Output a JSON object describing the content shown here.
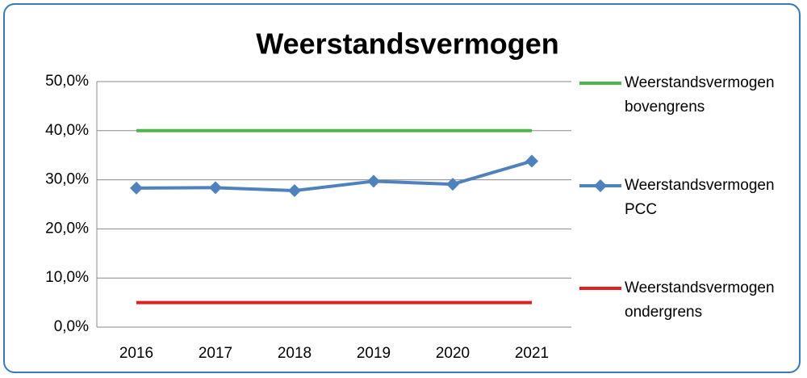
{
  "chart_data": {
    "type": "line",
    "title": "Weerstandsvermogen",
    "categories": [
      "2016",
      "2017",
      "2018",
      "2019",
      "2020",
      "2021"
    ],
    "series": [
      {
        "name": "Weerstandsvermogen bovengrens",
        "color": "#4cb84c",
        "values": [
          40,
          40,
          40,
          40,
          40,
          40
        ],
        "marker": "none"
      },
      {
        "name": "Weerstandsvermogen PCC",
        "color": "#4f81bd",
        "values": [
          28.3,
          28.4,
          27.8,
          29.7,
          29.1,
          33.8
        ],
        "marker": "diamond"
      },
      {
        "name": "Weerstandsvermogen ondergrens",
        "color": "#e02020",
        "values": [
          5,
          5,
          5,
          5,
          5,
          5
        ],
        "marker": "none"
      }
    ],
    "ylim": [
      0,
      50
    ],
    "yticks": [
      {
        "value": 0,
        "label": "0,0%"
      },
      {
        "value": 10,
        "label": "10,0%"
      },
      {
        "value": 20,
        "label": "20,0%"
      },
      {
        "value": 30,
        "label": "30,0%"
      },
      {
        "value": 40,
        "label": "40,0%"
      },
      {
        "value": 50,
        "label": "50,0%"
      }
    ],
    "grid": true,
    "legend": "right"
  }
}
